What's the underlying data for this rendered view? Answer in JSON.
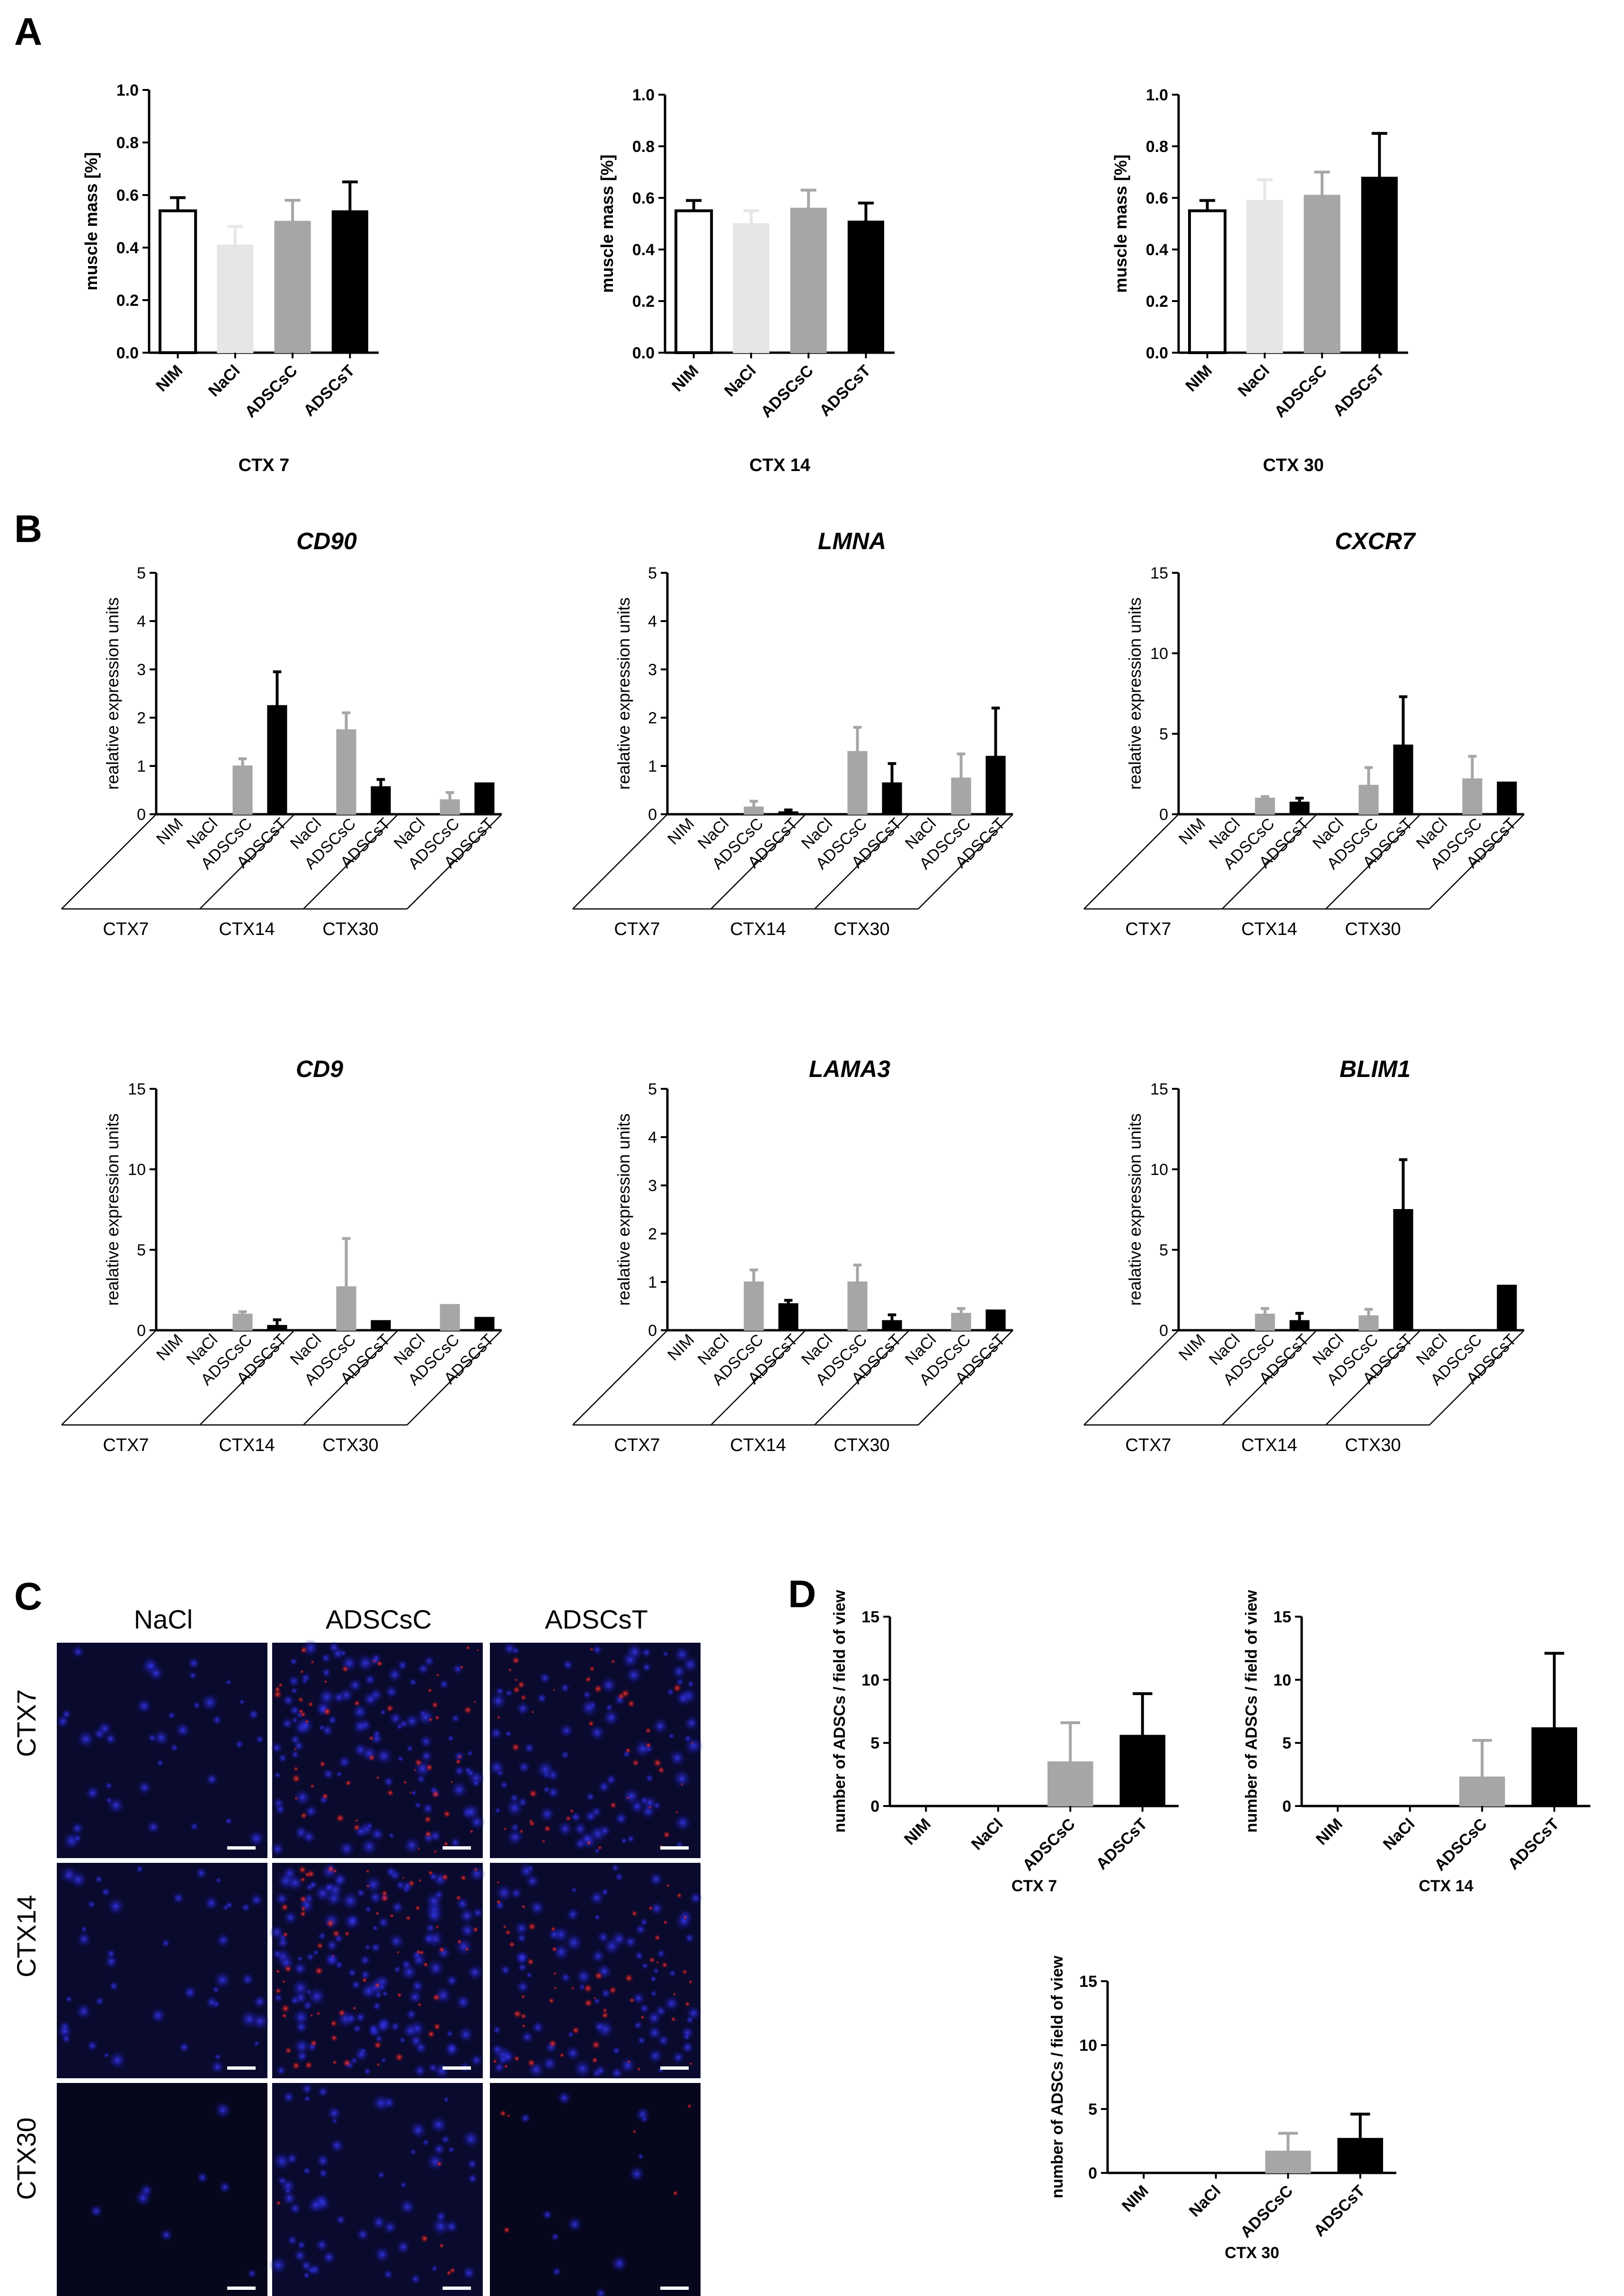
{
  "panel_labels": {
    "a": "A",
    "b": "B",
    "c": "C",
    "d": "D"
  },
  "colors": {
    "white": "#ffffff",
    "light": "#e6e6e6",
    "gray": "#a6a6a6",
    "black": "#000000"
  },
  "chart_data": [
    {
      "panel": "A",
      "type": "bar",
      "xlabel": "CTX 7",
      "ylabel": "muscle mass [%]",
      "ylim": [
        0,
        1.0
      ],
      "yticks": [
        "0.0",
        "0.2",
        "0.4",
        "0.6",
        "0.8",
        "1.0"
      ],
      "categories": [
        "NIM",
        "NaCl",
        "ADSCsC",
        "ADSCsT"
      ],
      "values": [
        0.54,
        0.41,
        0.5,
        0.54
      ],
      "errors": [
        0.05,
        0.07,
        0.08,
        0.11
      ],
      "fills": [
        "white",
        "light",
        "gray",
        "black"
      ]
    },
    {
      "panel": "A",
      "type": "bar",
      "xlabel": "CTX 14",
      "ylabel": "muscle mass [%]",
      "ylim": [
        0,
        1.0
      ],
      "yticks": [
        "0.0",
        "0.2",
        "0.4",
        "0.6",
        "0.8",
        "1.0"
      ],
      "categories": [
        "NIM",
        "NaCl",
        "ADSCsC",
        "ADSCsT"
      ],
      "values": [
        0.55,
        0.5,
        0.56,
        0.51
      ],
      "errors": [
        0.04,
        0.05,
        0.07,
        0.07
      ],
      "fills": [
        "white",
        "light",
        "gray",
        "black"
      ]
    },
    {
      "panel": "A",
      "type": "bar",
      "xlabel": "CTX 30",
      "ylabel": "muscle mass [%]",
      "ylim": [
        0,
        1.0
      ],
      "yticks": [
        "0.0",
        "0.2",
        "0.4",
        "0.6",
        "0.8",
        "1.0"
      ],
      "categories": [
        "NIM",
        "NaCl",
        "ADSCsC",
        "ADSCsT"
      ],
      "values": [
        0.55,
        0.59,
        0.61,
        0.68
      ],
      "errors": [
        0.04,
        0.08,
        0.09,
        0.17
      ],
      "fills": [
        "white",
        "light",
        "gray",
        "black"
      ]
    },
    {
      "panel": "B",
      "type": "bar",
      "title": "CD90",
      "ylabel": "realative expression units",
      "ylim": [
        0,
        5
      ],
      "yticks": [
        "0",
        "1",
        "2",
        "3",
        "4",
        "5"
      ],
      "categories": [
        "NIM",
        "NaCl",
        "ADSCsC",
        "ADSCsT",
        "NaCl",
        "ADSCsC",
        "ADSCsT",
        "NaCl",
        "ADSCsC",
        "ADSCsT"
      ],
      "groups": [
        "CTX7",
        "CTX14",
        "CTX30"
      ],
      "values": [
        0,
        0,
        1.0,
        2.25,
        0,
        1.75,
        0.57,
        0,
        0.3,
        0.65
      ],
      "errors": [
        0,
        0,
        0.15,
        0.7,
        0,
        0.35,
        0.15,
        0,
        0.15,
        0
      ],
      "fills": [
        "gray",
        "gray",
        "gray",
        "black",
        "gray",
        "gray",
        "black",
        "gray",
        "gray",
        "black"
      ]
    },
    {
      "panel": "B",
      "type": "bar",
      "title": "LMNA",
      "ylabel": "realative expression units",
      "ylim": [
        0,
        5
      ],
      "yticks": [
        "0",
        "1",
        "2",
        "3",
        "4",
        "5"
      ],
      "categories": [
        "NIM",
        "NaCl",
        "ADSCsC",
        "ADSCsT",
        "NaCl",
        "ADSCsC",
        "ADSCsT",
        "NaCl",
        "ADSCsC",
        "ADSCsT"
      ],
      "groups": [
        "CTX7",
        "CTX14",
        "CTX30"
      ],
      "values": [
        0,
        0,
        0.15,
        0.05,
        0,
        1.3,
        0.65,
        0,
        0.75,
        1.2
      ],
      "errors": [
        0,
        0,
        0.12,
        0.04,
        0,
        0.5,
        0.4,
        0,
        0.5,
        1.0
      ],
      "fills": [
        "gray",
        "gray",
        "gray",
        "black",
        "gray",
        "gray",
        "black",
        "gray",
        "gray",
        "black"
      ]
    },
    {
      "panel": "B",
      "type": "bar",
      "title": "CXCR7",
      "ylabel": "realative expression units",
      "ylim": [
        0,
        15
      ],
      "yticks": [
        "0",
        "5",
        "10",
        "15"
      ],
      "categories": [
        "NIM",
        "NaCl",
        "ADSCsC",
        "ADSCsT",
        "NaCl",
        "ADSCsC",
        "ADSCsT",
        "NaCl",
        "ADSCsC",
        "ADSCsT"
      ],
      "groups": [
        "CTX7",
        "CTX14",
        "CTX30"
      ],
      "values": [
        0,
        0,
        1.0,
        0.75,
        0,
        1.8,
        4.3,
        0,
        2.2,
        2.0
      ],
      "errors": [
        0,
        0,
        0.1,
        0.25,
        0,
        1.1,
        3.0,
        0,
        1.4,
        0
      ],
      "fills": [
        "gray",
        "gray",
        "gray",
        "black",
        "gray",
        "gray",
        "black",
        "gray",
        "gray",
        "black"
      ]
    },
    {
      "panel": "B",
      "type": "bar",
      "title": "CD9",
      "ylabel": "realative expression units",
      "ylim": [
        0,
        15
      ],
      "yticks": [
        "0",
        "5",
        "10",
        "15"
      ],
      "categories": [
        "NIM",
        "NaCl",
        "ADSCsC",
        "ADSCsT",
        "NaCl",
        "ADSCsC",
        "ADSCsT",
        "NaCl",
        "ADSCsC",
        "ADSCsT"
      ],
      "groups": [
        "CTX7",
        "CTX14",
        "CTX30"
      ],
      "values": [
        0,
        0,
        1.0,
        0.3,
        0,
        2.7,
        0.6,
        0,
        1.6,
        0.8
      ],
      "errors": [
        0,
        0,
        0.15,
        0.35,
        0,
        3.0,
        0,
        0,
        0,
        0
      ],
      "fills": [
        "gray",
        "gray",
        "gray",
        "black",
        "gray",
        "gray",
        "black",
        "gray",
        "gray",
        "black"
      ]
    },
    {
      "panel": "B",
      "type": "bar",
      "title": "LAMA3",
      "ylabel": "realative expression units",
      "ylim": [
        0,
        5
      ],
      "yticks": [
        "0",
        "1",
        "2",
        "3",
        "4",
        "5"
      ],
      "categories": [
        "NIM",
        "NaCl",
        "ADSCsC",
        "ADSCsT",
        "NaCl",
        "ADSCsC",
        "ADSCsT",
        "NaCl",
        "ADSCsC",
        "ADSCsT"
      ],
      "groups": [
        "CTX7",
        "CTX14",
        "CTX30"
      ],
      "values": [
        0,
        0,
        1.0,
        0.55,
        0,
        1.0,
        0.2,
        0,
        0.35,
        0.42
      ],
      "errors": [
        0,
        0,
        0.25,
        0.07,
        0,
        0.35,
        0.12,
        0,
        0.1,
        0
      ],
      "fills": [
        "gray",
        "gray",
        "gray",
        "black",
        "gray",
        "gray",
        "black",
        "gray",
        "gray",
        "black"
      ]
    },
    {
      "panel": "B",
      "type": "bar",
      "title": "BLIM1",
      "ylabel": "realative expression units",
      "ylim": [
        0,
        15
      ],
      "yticks": [
        "0",
        "5",
        "10",
        "15"
      ],
      "categories": [
        "NIM",
        "NaCl",
        "ADSCsC",
        "ADSCsT",
        "NaCl",
        "ADSCsC",
        "ADSCsT",
        "NaCl",
        "ADSCsC",
        "ADSCsT"
      ],
      "groups": [
        "CTX7",
        "CTX14",
        "CTX30"
      ],
      "values": [
        0,
        0,
        1.0,
        0.6,
        0,
        0.9,
        7.5,
        0,
        0,
        2.8
      ],
      "errors": [
        0,
        0,
        0.35,
        0.45,
        0,
        0.4,
        3.1,
        0,
        0,
        0
      ],
      "fills": [
        "gray",
        "gray",
        "gray",
        "black",
        "gray",
        "gray",
        "black",
        "gray",
        "gray",
        "black"
      ]
    },
    {
      "panel": "D",
      "type": "bar",
      "xlabel": "CTX 7",
      "ylabel": "number of ADSCs / field of view",
      "ylim": [
        0,
        15
      ],
      "yticks": [
        "0",
        "5",
        "10",
        "15"
      ],
      "categories": [
        "NIM",
        "NaCl",
        "ADSCsC",
        "ADSCsT"
      ],
      "values": [
        0,
        0,
        3.5,
        5.6
      ],
      "errors": [
        0,
        0,
        3.1,
        3.3
      ],
      "fills": [
        "gray",
        "gray",
        "gray",
        "black"
      ]
    },
    {
      "panel": "D",
      "type": "bar",
      "xlabel": "CTX 14",
      "ylabel": "number of ADSCs / field of view",
      "ylim": [
        0,
        15
      ],
      "yticks": [
        "0",
        "5",
        "10",
        "15"
      ],
      "categories": [
        "NIM",
        "NaCl",
        "ADSCsC",
        "ADSCsT"
      ],
      "values": [
        0,
        0,
        2.3,
        6.2
      ],
      "errors": [
        0,
        0,
        2.9,
        5.9
      ],
      "fills": [
        "gray",
        "gray",
        "gray",
        "black"
      ]
    },
    {
      "panel": "D",
      "type": "bar",
      "xlabel": "CTX 30",
      "ylabel": "number of ADSCs / field of view",
      "ylim": [
        0,
        15
      ],
      "yticks": [
        "0",
        "5",
        "10",
        "15"
      ],
      "categories": [
        "NIM",
        "NaCl",
        "ADSCsC",
        "ADSCsT"
      ],
      "values": [
        0,
        0,
        1.7,
        2.7
      ],
      "errors": [
        0,
        0,
        1.4,
        1.9
      ],
      "fills": [
        "gray",
        "gray",
        "gray",
        "black"
      ]
    }
  ],
  "microscopy": {
    "columns": [
      "NaCl",
      "ADSCsC",
      "ADSCsT"
    ],
    "rows": [
      "CTX7",
      "CTX14",
      "CTX30"
    ]
  }
}
